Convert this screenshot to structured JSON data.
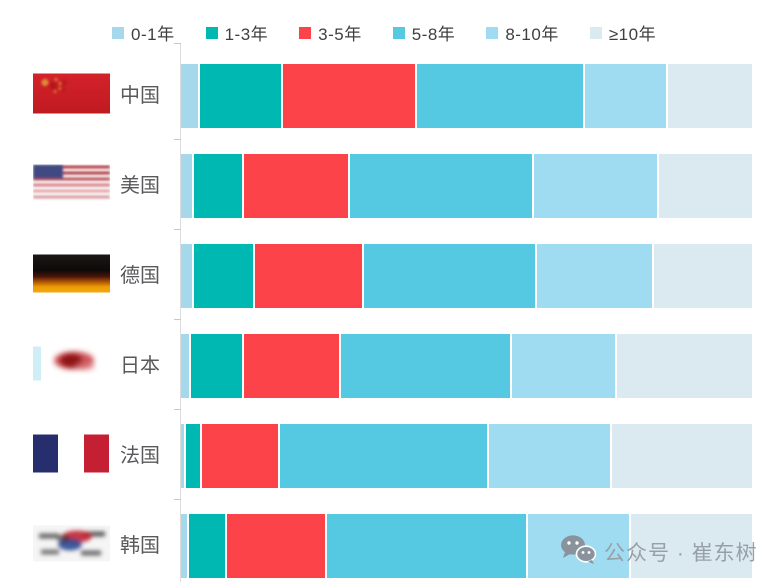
{
  "chart_data": {
    "type": "bar",
    "orientation": "horizontal-stacked",
    "unit": "%",
    "title": "",
    "xlabel": "",
    "ylabel": "",
    "xlim": [
      0,
      100
    ],
    "grid": false,
    "legend_position": "top",
    "categories": [
      "中国",
      "美国",
      "德国",
      "日本",
      "法国",
      "韩国"
    ],
    "series": [
      {
        "name": "0-1年",
        "color": "#a6d8ec",
        "values": [
          3,
          2,
          2,
          1.5,
          0.5,
          1
        ]
      },
      {
        "name": "1-3年",
        "color": "#00b8b2",
        "values": [
          14.5,
          8.5,
          10.5,
          9,
          2.5,
          6.5
        ]
      },
      {
        "name": "3-5年",
        "color": "#fc4349",
        "values": [
          23.5,
          18.5,
          19,
          17,
          13.5,
          17.5
        ]
      },
      {
        "name": "5-8年",
        "color": "#55c8e2",
        "values": [
          29.5,
          32.5,
          30.5,
          30,
          37,
          35.5
        ]
      },
      {
        "name": "8-10年",
        "color": "#9fdcf2",
        "values": [
          14.5,
          22,
          20.5,
          18.5,
          21.5,
          18
        ]
      },
      {
        "name": "≥10年",
        "color": "#dbeaf1",
        "values": [
          15,
          16.5,
          17.5,
          24,
          25,
          21.5
        ]
      }
    ]
  },
  "flags": {
    "row0": "china-flag",
    "row1": "usa-flag",
    "row2": "germany-flag",
    "row3": "japan-flag",
    "row4": "france-flag",
    "row5": "korea-flag"
  },
  "watermark": {
    "icon": "wechat-icon",
    "text": "公众号 · 崔东树"
  },
  "colors": {
    "axis_line": "#dcdcdc",
    "legend_text": "#3f3f3f",
    "category_text": "#58595b",
    "watermark_text": "#97a0a7",
    "background": "#ffffff"
  }
}
